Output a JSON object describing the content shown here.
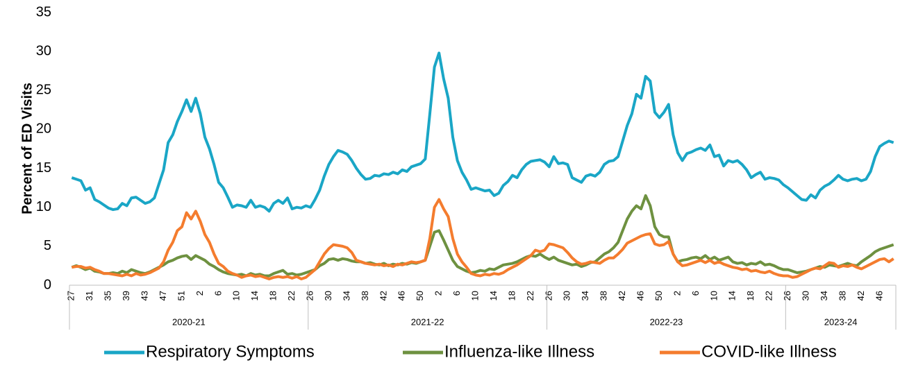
{
  "chart_data": {
    "type": "line",
    "y_label": "Percent of ED Visits",
    "ylim": [
      0,
      35
    ],
    "yticks": [
      0,
      5,
      10,
      15,
      20,
      25,
      30,
      35
    ],
    "grid": false,
    "legend": "bottom",
    "groups": [
      {
        "name": "2020-21",
        "size": 52
      },
      {
        "name": "2021-22",
        "size": 52
      },
      {
        "name": "2022-23",
        "size": 52
      },
      {
        "name": "2023-24",
        "size": 24
      }
    ],
    "categories": [
      "27",
      null,
      null,
      null,
      "31",
      null,
      null,
      null,
      "35",
      null,
      null,
      null,
      "39",
      null,
      null,
      null,
      "43",
      null,
      null,
      null,
      "47",
      null,
      null,
      null,
      "51",
      null,
      null,
      null,
      "2",
      null,
      null,
      null,
      "6",
      null,
      null,
      null,
      "10",
      null,
      null,
      null,
      "14",
      null,
      null,
      null,
      "18",
      null,
      null,
      null,
      "22",
      null,
      null,
      null,
      "26",
      null,
      null,
      null,
      "30",
      null,
      null,
      null,
      "34",
      null,
      null,
      null,
      "38",
      null,
      null,
      null,
      "42",
      null,
      null,
      null,
      "46",
      null,
      null,
      null,
      "50",
      null,
      null,
      null,
      "2",
      null,
      null,
      null,
      "6",
      null,
      null,
      null,
      "10",
      null,
      null,
      null,
      "14",
      null,
      null,
      null,
      "18",
      null,
      null,
      null,
      "22",
      null,
      null,
      null,
      "26",
      null,
      null,
      null,
      "30",
      null,
      null,
      null,
      "34",
      null,
      null,
      null,
      "38",
      null,
      null,
      null,
      "42",
      null,
      null,
      null,
      "46",
      null,
      null,
      null,
      "50",
      null,
      null,
      null,
      "2",
      null,
      null,
      null,
      "6",
      null,
      null,
      null,
      "10",
      null,
      null,
      null,
      "14",
      null,
      null,
      null,
      "18",
      null,
      null,
      null,
      "22",
      null,
      null,
      null,
      "26",
      null,
      null,
      null,
      "30",
      null,
      null,
      null,
      "34",
      null,
      null,
      null,
      "38",
      null,
      null,
      null,
      "42",
      null,
      null,
      null,
      "46",
      null,
      null,
      null
    ],
    "series": [
      {
        "name": "Respiratory Symptoms",
        "color": "#1aa6c6",
        "values": [
          13.8,
          13.6,
          13.4,
          12.2,
          12.5,
          11.0,
          10.7,
          10.3,
          9.9,
          9.7,
          9.8,
          10.5,
          10.2,
          11.2,
          11.3,
          10.9,
          10.5,
          10.7,
          11.2,
          13.0,
          14.8,
          18.3,
          19.3,
          21.0,
          22.3,
          23.8,
          22.3,
          24.0,
          22.0,
          19.0,
          17.5,
          15.5,
          13.2,
          12.5,
          11.3,
          10.0,
          10.3,
          10.2,
          10.0,
          10.9,
          10.0,
          10.2,
          10.0,
          9.5,
          10.5,
          10.9,
          10.5,
          11.2,
          9.8,
          10.0,
          9.9,
          10.2,
          10.0,
          11.0,
          12.2,
          14.0,
          15.5,
          16.5,
          17.3,
          17.1,
          16.8,
          16.0,
          15.0,
          14.2,
          13.6,
          13.7,
          14.1,
          14.0,
          14.3,
          14.2,
          14.5,
          14.3,
          14.8,
          14.6,
          15.2,
          15.4,
          15.6,
          16.2,
          22.0,
          28.0,
          29.8,
          26.5,
          24.0,
          19.0,
          16.0,
          14.5,
          13.5,
          12.3,
          12.5,
          12.3,
          12.1,
          12.2,
          11.5,
          11.8,
          12.8,
          13.3,
          14.1,
          13.8,
          14.8,
          15.5,
          15.9,
          16.0,
          16.1,
          15.8,
          15.2,
          16.5,
          15.6,
          15.7,
          15.5,
          13.8,
          13.5,
          13.2,
          14.0,
          14.2,
          14.0,
          14.5,
          15.5,
          15.9,
          16.0,
          16.5,
          18.5,
          20.5,
          22.0,
          24.5,
          24.0,
          26.8,
          26.2,
          22.2,
          21.5,
          22.2,
          23.2,
          19.3,
          17.0,
          16.0,
          16.9,
          17.1,
          17.4,
          17.6,
          17.3,
          18.0,
          16.5,
          16.7,
          15.3,
          16.0,
          15.8,
          16.0,
          15.5,
          14.8,
          13.8,
          14.2,
          14.5,
          13.6,
          13.8,
          13.7,
          13.5,
          12.9,
          12.5,
          12.0,
          11.5,
          11.0,
          10.9,
          11.6,
          11.2,
          12.2,
          12.7,
          13.0,
          13.5,
          14.1,
          13.6,
          13.4,
          13.6,
          13.7,
          13.4,
          13.6,
          14.6,
          16.5,
          17.8,
          18.2,
          18.5,
          18.3
        ]
      },
      {
        "name": "Influenza-like Illness",
        "color": "#6e9140",
        "values": [
          2.3,
          2.5,
          2.3,
          2.0,
          2.2,
          1.8,
          1.7,
          1.5,
          1.5,
          1.6,
          1.5,
          1.8,
          1.6,
          2.0,
          1.8,
          1.6,
          1.5,
          1.7,
          2.0,
          2.3,
          2.6,
          3.0,
          3.2,
          3.5,
          3.7,
          3.8,
          3.3,
          3.8,
          3.5,
          3.2,
          2.7,
          2.4,
          2.0,
          1.7,
          1.5,
          1.4,
          1.3,
          1.4,
          1.2,
          1.5,
          1.3,
          1.4,
          1.2,
          1.2,
          1.5,
          1.7,
          1.9,
          1.4,
          1.5,
          1.3,
          1.4,
          1.6,
          1.8,
          2.0,
          2.5,
          2.8,
          3.3,
          3.4,
          3.2,
          3.4,
          3.3,
          3.1,
          3.0,
          3.0,
          2.8,
          2.9,
          2.7,
          2.6,
          2.8,
          2.5,
          2.7,
          2.6,
          2.8,
          2.7,
          2.9,
          2.8,
          3.0,
          3.2,
          5.0,
          6.8,
          7.0,
          5.8,
          4.5,
          3.2,
          2.4,
          2.1,
          1.8,
          1.6,
          1.7,
          1.9,
          1.8,
          2.1,
          2.0,
          2.3,
          2.6,
          2.7,
          2.8,
          3.0,
          3.3,
          3.6,
          3.8,
          3.7,
          4.0,
          3.6,
          3.3,
          3.6,
          3.2,
          3.0,
          2.8,
          2.6,
          2.7,
          2.4,
          2.6,
          2.9,
          3.0,
          3.5,
          4.0,
          4.3,
          4.8,
          5.5,
          7.0,
          8.5,
          9.5,
          10.2,
          9.8,
          11.5,
          10.2,
          7.5,
          6.5,
          6.2,
          6.2,
          4.0,
          3.0,
          3.2,
          3.3,
          3.5,
          3.6,
          3.4,
          3.8,
          3.3,
          3.6,
          3.2,
          3.4,
          3.6,
          3.0,
          2.8,
          2.9,
          2.6,
          2.8,
          2.7,
          3.0,
          2.6,
          2.7,
          2.5,
          2.2,
          2.0,
          2.0,
          1.8,
          1.6,
          1.7,
          1.8,
          2.0,
          2.2,
          2.4,
          2.3,
          2.6,
          2.5,
          2.4,
          2.6,
          2.8,
          2.6,
          2.5,
          3.0,
          3.4,
          3.8,
          4.3,
          4.6,
          4.8,
          5.0,
          5.2
        ]
      },
      {
        "name": "COVID-like Illness",
        "color": "#f47c2e",
        "values": [
          2.3,
          2.4,
          2.4,
          2.2,
          2.3,
          2.0,
          1.8,
          1.5,
          1.5,
          1.4,
          1.3,
          1.2,
          1.4,
          1.2,
          1.5,
          1.3,
          1.4,
          1.6,
          1.9,
          2.2,
          3.0,
          4.5,
          5.5,
          7.0,
          7.5,
          9.3,
          8.5,
          9.5,
          8.2,
          6.5,
          5.5,
          4.0,
          2.8,
          2.4,
          1.8,
          1.5,
          1.3,
          1.0,
          1.2,
          1.3,
          1.1,
          1.2,
          1.0,
          0.8,
          1.0,
          1.1,
          1.0,
          1.1,
          0.9,
          1.1,
          0.8,
          1.0,
          1.5,
          2.0,
          3.0,
          4.0,
          4.7,
          5.2,
          5.1,
          5.0,
          4.8,
          4.2,
          3.2,
          3.0,
          2.8,
          2.7,
          2.6,
          2.7,
          2.5,
          2.6,
          2.4,
          2.7,
          2.6,
          2.8,
          3.0,
          2.9,
          3.0,
          3.2,
          6.0,
          10.0,
          11.0,
          9.8,
          8.8,
          6.0,
          4.0,
          3.0,
          2.3,
          1.5,
          1.3,
          1.2,
          1.4,
          1.3,
          1.5,
          1.4,
          1.6,
          2.0,
          2.3,
          2.6,
          3.0,
          3.4,
          3.8,
          4.5,
          4.3,
          4.5,
          5.3,
          5.2,
          5.0,
          4.8,
          4.2,
          3.5,
          3.0,
          2.7,
          2.8,
          3.0,
          2.9,
          2.8,
          3.2,
          3.5,
          3.5,
          4.0,
          4.6,
          5.4,
          5.7,
          6.0,
          6.3,
          6.5,
          6.6,
          5.3,
          5.1,
          5.2,
          5.6,
          4.0,
          3.0,
          2.5,
          2.6,
          2.8,
          3.0,
          3.2,
          2.9,
          3.2,
          2.8,
          3.0,
          2.7,
          2.5,
          2.3,
          2.2,
          2.0,
          2.1,
          1.8,
          1.9,
          1.7,
          1.6,
          1.8,
          1.5,
          1.3,
          1.2,
          1.2,
          1.0,
          1.1,
          1.4,
          1.7,
          2.0,
          2.2,
          2.1,
          2.5,
          2.9,
          2.8,
          2.3,
          2.5,
          2.4,
          2.6,
          2.3,
          2.1,
          2.4,
          2.7,
          3.0,
          3.3,
          3.4,
          3.0,
          3.4
        ]
      }
    ]
  }
}
